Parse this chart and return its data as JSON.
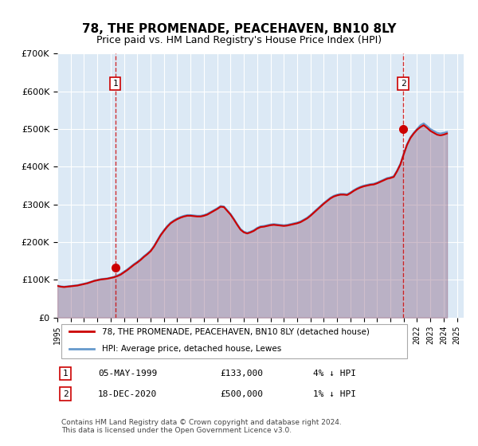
{
  "title": "78, THE PROMENADE, PEACEHAVEN, BN10 8LY",
  "subtitle": "Price paid vs. HM Land Registry's House Price Index (HPI)",
  "ylabel": "",
  "ylim": [
    0,
    700000
  ],
  "yticks": [
    0,
    100000,
    200000,
    300000,
    400000,
    500000,
    600000,
    700000
  ],
  "ytick_labels": [
    "£0",
    "£100K",
    "£200K",
    "£300K",
    "£400K",
    "£500K",
    "£600K",
    "£700K"
  ],
  "xlim_start": 1995.0,
  "xlim_end": 2025.5,
  "background_color": "#ffffff",
  "plot_bg_color": "#dce9f5",
  "grid_color": "#ffffff",
  "hpi_color": "#6699cc",
  "price_color": "#cc0000",
  "sale1_x": 1999.35,
  "sale1_y": 133000,
  "sale2_x": 2020.96,
  "sale2_y": 500000,
  "legend_line1": "78, THE PROMENADE, PEACEHAVEN, BN10 8LY (detached house)",
  "legend_line2": "HPI: Average price, detached house, Lewes",
  "table_rows": [
    {
      "num": "1",
      "date": "05-MAY-1999",
      "price": "£133,000",
      "hpi": "4% ↓ HPI"
    },
    {
      "num": "2",
      "date": "18-DEC-2020",
      "price": "£500,000",
      "hpi": "1% ↓ HPI"
    }
  ],
  "footer": "Contains HM Land Registry data © Crown copyright and database right 2024.\nThis data is licensed under the Open Government Licence v3.0.",
  "hpi_data_x": [
    1995.0,
    1995.25,
    1995.5,
    1995.75,
    1996.0,
    1996.25,
    1996.5,
    1996.75,
    1997.0,
    1997.25,
    1997.5,
    1997.75,
    1998.0,
    1998.25,
    1998.5,
    1998.75,
    1999.0,
    1999.25,
    1999.5,
    1999.75,
    2000.0,
    2000.25,
    2000.5,
    2000.75,
    2001.0,
    2001.25,
    2001.5,
    2001.75,
    2002.0,
    2002.25,
    2002.5,
    2002.75,
    2003.0,
    2003.25,
    2003.5,
    2003.75,
    2004.0,
    2004.25,
    2004.5,
    2004.75,
    2005.0,
    2005.25,
    2005.5,
    2005.75,
    2006.0,
    2006.25,
    2006.5,
    2006.75,
    2007.0,
    2007.25,
    2007.5,
    2007.75,
    2008.0,
    2008.25,
    2008.5,
    2008.75,
    2009.0,
    2009.25,
    2009.5,
    2009.75,
    2010.0,
    2010.25,
    2010.5,
    2010.75,
    2011.0,
    2011.25,
    2011.5,
    2011.75,
    2012.0,
    2012.25,
    2012.5,
    2012.75,
    2013.0,
    2013.25,
    2013.5,
    2013.75,
    2014.0,
    2014.25,
    2014.5,
    2014.75,
    2015.0,
    2015.25,
    2015.5,
    2015.75,
    2016.0,
    2016.25,
    2016.5,
    2016.75,
    2017.0,
    2017.25,
    2017.5,
    2017.75,
    2018.0,
    2018.25,
    2018.5,
    2018.75,
    2019.0,
    2019.25,
    2019.5,
    2019.75,
    2020.0,
    2020.25,
    2020.5,
    2020.75,
    2021.0,
    2021.25,
    2021.5,
    2021.75,
    2022.0,
    2022.25,
    2022.5,
    2022.75,
    2023.0,
    2023.25,
    2023.5,
    2023.75,
    2024.0,
    2024.25
  ],
  "hpi_data_y": [
    85000,
    83000,
    82000,
    83000,
    84000,
    85000,
    86000,
    88000,
    90000,
    92000,
    95000,
    98000,
    100000,
    102000,
    103000,
    104000,
    106000,
    108000,
    112000,
    116000,
    122000,
    128000,
    135000,
    142000,
    148000,
    155000,
    163000,
    170000,
    178000,
    190000,
    205000,
    220000,
    232000,
    243000,
    252000,
    258000,
    263000,
    267000,
    270000,
    272000,
    272000,
    271000,
    270000,
    270000,
    272000,
    275000,
    280000,
    285000,
    290000,
    296000,
    295000,
    285000,
    275000,
    262000,
    248000,
    235000,
    228000,
    225000,
    228000,
    232000,
    238000,
    242000,
    243000,
    245000,
    247000,
    248000,
    247000,
    246000,
    245000,
    246000,
    248000,
    250000,
    252000,
    255000,
    260000,
    265000,
    272000,
    280000,
    288000,
    296000,
    304000,
    311000,
    318000,
    323000,
    326000,
    328000,
    328000,
    327000,
    332000,
    338000,
    343000,
    347000,
    350000,
    352000,
    354000,
    355000,
    358000,
    362000,
    366000,
    370000,
    372000,
    375000,
    390000,
    408000,
    435000,
    460000,
    478000,
    490000,
    500000,
    510000,
    515000,
    508000,
    500000,
    495000,
    490000,
    488000,
    490000,
    492000
  ],
  "price_data_x": [
    1995.0,
    1995.25,
    1995.5,
    1995.75,
    1996.0,
    1996.25,
    1996.5,
    1996.75,
    1997.0,
    1997.25,
    1997.5,
    1997.75,
    1998.0,
    1998.25,
    1998.5,
    1998.75,
    1999.0,
    1999.25,
    1999.5,
    1999.75,
    2000.0,
    2000.25,
    2000.5,
    2000.75,
    2001.0,
    2001.25,
    2001.5,
    2001.75,
    2002.0,
    2002.25,
    2002.5,
    2002.75,
    2003.0,
    2003.25,
    2003.5,
    2003.75,
    2004.0,
    2004.25,
    2004.5,
    2004.75,
    2005.0,
    2005.25,
    2005.5,
    2005.75,
    2006.0,
    2006.25,
    2006.5,
    2006.75,
    2007.0,
    2007.25,
    2007.5,
    2007.75,
    2008.0,
    2008.25,
    2008.5,
    2008.75,
    2009.0,
    2009.25,
    2009.5,
    2009.75,
    2010.0,
    2010.25,
    2010.5,
    2010.75,
    2011.0,
    2011.25,
    2011.5,
    2011.75,
    2012.0,
    2012.25,
    2012.5,
    2012.75,
    2013.0,
    2013.25,
    2013.5,
    2013.75,
    2014.0,
    2014.25,
    2014.5,
    2014.75,
    2015.0,
    2015.25,
    2015.5,
    2015.75,
    2016.0,
    2016.25,
    2016.5,
    2016.75,
    2017.0,
    2017.25,
    2017.5,
    2017.75,
    2018.0,
    2018.25,
    2018.5,
    2018.75,
    2019.0,
    2019.25,
    2019.5,
    2019.75,
    2020.0,
    2020.25,
    2020.5,
    2020.75,
    2021.0,
    2021.25,
    2021.5,
    2021.75,
    2022.0,
    2022.25,
    2022.5,
    2022.75,
    2023.0,
    2023.25,
    2023.5,
    2023.75,
    2024.0,
    2024.25
  ],
  "price_data_y": [
    84000,
    82000,
    81000,
    82000,
    83000,
    84000,
    85000,
    87000,
    89000,
    91000,
    94000,
    97000,
    99000,
    101000,
    102000,
    103000,
    105000,
    107000,
    110000,
    114000,
    120000,
    126000,
    133000,
    140000,
    146000,
    153000,
    161000,
    168000,
    176000,
    188000,
    203000,
    218000,
    230000,
    241000,
    250000,
    256000,
    261000,
    265000,
    268000,
    270000,
    270000,
    269000,
    268000,
    268000,
    270000,
    273000,
    278000,
    283000,
    288000,
    294000,
    293000,
    283000,
    273000,
    260000,
    246000,
    233000,
    226000,
    223000,
    226000,
    230000,
    236000,
    240000,
    241000,
    243000,
    245000,
    246000,
    245000,
    244000,
    243000,
    244000,
    246000,
    248000,
    250000,
    253000,
    258000,
    263000,
    270000,
    278000,
    286000,
    294000,
    302000,
    309000,
    316000,
    321000,
    324000,
    326000,
    326000,
    325000,
    330000,
    336000,
    341000,
    345000,
    348000,
    350000,
    352000,
    353000,
    356000,
    360000,
    364000,
    368000,
    370000,
    373000,
    388000,
    406000,
    433000,
    458000,
    476000,
    488000,
    498000,
    505000,
    510000,
    503000,
    495000,
    490000,
    485000,
    483000,
    485000,
    488000
  ]
}
